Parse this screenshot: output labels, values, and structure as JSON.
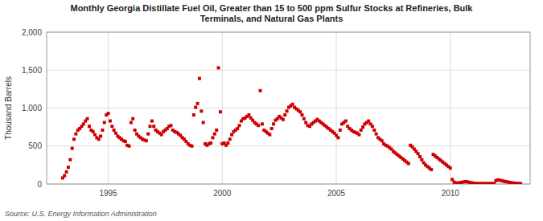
{
  "chart_data": {
    "type": "scatter",
    "title": "Monthly Georgia Distillate Fuel Oil, Greater than 15 to 500 ppm Sulfur Stocks at Refineries, Bulk\nTerminals, and Natural Gas Plants",
    "ylabel": "Thousand Barrels",
    "source": "Source: U.S. Energy Information Administration",
    "color": "#cc0000",
    "marker": "square",
    "grid": true,
    "xlim": [
      1992.3,
      2013.5
    ],
    "xticks": [
      1995,
      2000,
      2005,
      2010
    ],
    "ylim": [
      0,
      2000
    ],
    "yticks": [
      0,
      500,
      {
        "value": 1000,
        "label": "1,000"
      },
      {
        "value": 1500,
        "label": "1,500"
      },
      {
        "value": 2000,
        "label": "2,000"
      }
    ],
    "x": [
      1993.0,
      1993.083,
      1993.167,
      1993.25,
      1993.333,
      1993.417,
      1993.5,
      1993.583,
      1993.667,
      1993.75,
      1993.833,
      1993.917,
      1994.0,
      1994.083,
      1994.167,
      1994.25,
      1994.333,
      1994.417,
      1994.5,
      1994.583,
      1994.667,
      1994.75,
      1994.833,
      1994.917,
      1995.0,
      1995.083,
      1995.167,
      1995.25,
      1995.333,
      1995.417,
      1995.5,
      1995.583,
      1995.667,
      1995.75,
      1995.833,
      1995.917,
      1996.0,
      1996.083,
      1996.167,
      1996.25,
      1996.333,
      1996.417,
      1996.5,
      1996.583,
      1996.667,
      1996.75,
      1996.833,
      1996.917,
      1997.0,
      1997.083,
      1997.167,
      1997.25,
      1997.333,
      1997.417,
      1997.5,
      1997.583,
      1997.667,
      1997.75,
      1997.833,
      1997.917,
      1998.0,
      1998.083,
      1998.167,
      1998.25,
      1998.333,
      1998.417,
      1998.5,
      1998.583,
      1998.667,
      1998.75,
      1998.833,
      1998.917,
      1999.0,
      1999.083,
      1999.167,
      1999.25,
      1999.333,
      1999.417,
      1999.5,
      1999.583,
      1999.667,
      1999.75,
      1999.833,
      1999.917,
      2000.0,
      2000.083,
      2000.167,
      2000.25,
      2000.333,
      2000.417,
      2000.5,
      2000.583,
      2000.667,
      2000.75,
      2000.833,
      2000.917,
      2001.0,
      2001.083,
      2001.167,
      2001.25,
      2001.333,
      2001.417,
      2001.5,
      2001.583,
      2001.667,
      2001.75,
      2001.833,
      2001.917,
      2002.0,
      2002.083,
      2002.167,
      2002.25,
      2002.333,
      2002.417,
      2002.5,
      2002.583,
      2002.667,
      2002.75,
      2002.833,
      2002.917,
      2003.0,
      2003.083,
      2003.167,
      2003.25,
      2003.333,
      2003.417,
      2003.5,
      2003.583,
      2003.667,
      2003.75,
      2003.833,
      2003.917,
      2004.0,
      2004.083,
      2004.167,
      2004.25,
      2004.333,
      2004.417,
      2004.5,
      2004.583,
      2004.667,
      2004.75,
      2004.833,
      2004.917,
      2005.0,
      2005.083,
      2005.167,
      2005.25,
      2005.333,
      2005.417,
      2005.5,
      2005.583,
      2005.667,
      2005.75,
      2005.833,
      2005.917,
      2006.0,
      2006.083,
      2006.167,
      2006.25,
      2006.333,
      2006.417,
      2006.5,
      2006.583,
      2006.667,
      2006.75,
      2006.833,
      2006.917,
      2007.0,
      2007.083,
      2007.167,
      2007.25,
      2007.333,
      2007.417,
      2007.5,
      2007.583,
      2007.667,
      2007.75,
      2007.833,
      2007.917,
      2008.0,
      2008.083,
      2008.167,
      2008.25,
      2008.333,
      2008.417,
      2008.5,
      2008.583,
      2008.667,
      2008.75,
      2008.833,
      2008.917,
      2009.0,
      2009.083,
      2009.167,
      2009.25,
      2009.333,
      2009.417,
      2009.5,
      2009.583,
      2009.667,
      2009.75,
      2009.833,
      2009.917,
      2010.0,
      2010.083,
      2010.167,
      2010.25,
      2010.333,
      2010.417,
      2010.5,
      2010.583,
      2010.667,
      2010.75,
      2010.833,
      2010.917,
      2011.0,
      2011.083,
      2011.167,
      2011.25,
      2011.333,
      2011.417,
      2011.5,
      2011.583,
      2011.667,
      2011.75,
      2011.833,
      2011.917,
      2012.0,
      2012.083,
      2012.167,
      2012.25,
      2012.333,
      2012.417,
      2012.5,
      2012.583,
      2012.667,
      2012.75,
      2012.833,
      2012.917,
      2013.0,
      2013.083
    ],
    "values": [
      80,
      110,
      160,
      220,
      320,
      470,
      590,
      660,
      710,
      730,
      760,
      790,
      830,
      860,
      760,
      710,
      690,
      650,
      610,
      590,
      630,
      710,
      810,
      910,
      930,
      830,
      760,
      710,
      670,
      630,
      610,
      590,
      570,
      560,
      510,
      500,
      810,
      860,
      710,
      660,
      630,
      610,
      590,
      580,
      570,
      660,
      760,
      830,
      760,
      710,
      690,
      670,
      650,
      690,
      710,
      730,
      760,
      770,
      710,
      690,
      680,
      660,
      640,
      610,
      590,
      560,
      530,
      510,
      500,
      910,
      1010,
      1060,
      1390,
      960,
      810,
      530,
      510,
      530,
      540,
      610,
      660,
      710,
      1530,
      950,
      530,
      540,
      510,
      540,
      590,
      650,
      690,
      710,
      730,
      770,
      830,
      860,
      870,
      890,
      910,
      870,
      840,
      810,
      790,
      770,
      1230,
      790,
      710,
      690,
      670,
      650,
      730,
      790,
      840,
      860,
      890,
      870,
      850,
      910,
      960,
      1010,
      1030,
      1050,
      1010,
      990,
      970,
      950,
      910,
      860,
      810,
      770,
      760,
      790,
      810,
      830,
      850,
      830,
      810,
      790,
      770,
      750,
      730,
      710,
      690,
      670,
      640,
      610,
      710,
      790,
      810,
      830,
      760,
      730,
      710,
      690,
      680,
      670,
      650,
      710,
      750,
      790,
      810,
      830,
      790,
      760,
      710,
      660,
      610,
      590,
      570,
      530,
      510,
      500,
      480,
      460,
      430,
      410,
      390,
      370,
      350,
      330,
      310,
      290,
      270,
      510,
      490,
      460,
      430,
      400,
      360,
      320,
      280,
      250,
      230,
      210,
      190,
      390,
      370,
      350,
      330,
      310,
      290,
      270,
      250,
      230,
      210,
      60,
      25,
      15,
      12,
      18,
      22,
      28,
      32,
      28,
      22,
      18,
      12,
      10,
      8,
      6,
      6,
      6,
      6,
      6,
      6,
      6,
      6,
      6,
      45,
      55,
      50,
      45,
      38,
      32,
      28,
      22,
      18,
      14,
      11,
      9,
      7,
      6
    ]
  }
}
